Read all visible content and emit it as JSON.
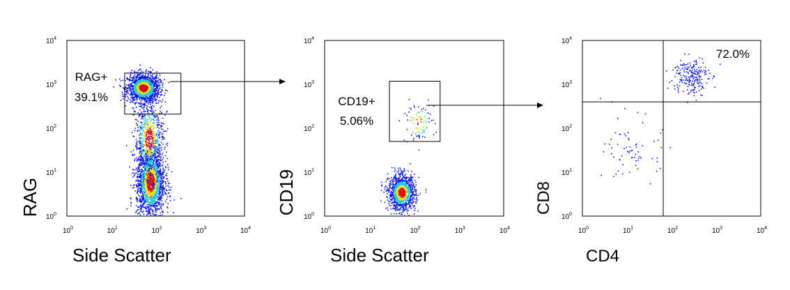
{
  "chart_data": [
    {
      "type": "scatter",
      "subtype": "flow-cytometry-density",
      "xlabel": "Side Scatter",
      "ylabel": "RAG",
      "x_scale": "log",
      "y_scale": "log",
      "xlim": [
        1,
        10000
      ],
      "ylim": [
        1,
        10000
      ],
      "x_ticks": [
        {
          "base": "10",
          "exp": "0"
        },
        {
          "base": "10",
          "exp": "1"
        },
        {
          "base": "10",
          "exp": "2"
        },
        {
          "base": "10",
          "exp": "3"
        },
        {
          "base": "10",
          "exp": "4"
        }
      ],
      "y_ticks": [
        {
          "base": "10",
          "exp": "0"
        },
        {
          "base": "10",
          "exp": "1"
        },
        {
          "base": "10",
          "exp": "2"
        },
        {
          "base": "10",
          "exp": "3"
        },
        {
          "base": "10",
          "exp": "4"
        }
      ],
      "populations": [
        {
          "x_center": 52,
          "y_center": 850,
          "x_spread": 0.18,
          "y_spread": 0.16,
          "points": 1500
        },
        {
          "x_center": 75,
          "y_center": 6,
          "x_spread": 0.16,
          "y_spread": 0.4,
          "points": 1900
        },
        {
          "x_center": 70,
          "y_center": 60,
          "x_spread": 0.16,
          "y_spread": 0.45,
          "points": 700
        }
      ],
      "gates": [
        {
          "type": "rectangle",
          "x_range": [
            20,
            370
          ],
          "y_range": [
            210,
            1800
          ],
          "label_line1": "RAG+",
          "label_line2": "39.1%"
        }
      ]
    },
    {
      "type": "scatter",
      "subtype": "flow-cytometry-density",
      "xlabel": "Side Scatter",
      "ylabel": "CD19",
      "x_scale": "log",
      "y_scale": "log",
      "xlim": [
        1,
        10000
      ],
      "ylim": [
        1,
        10000
      ],
      "x_ticks": [
        {
          "base": "10",
          "exp": "0"
        },
        {
          "base": "10",
          "exp": "1"
        },
        {
          "base": "10",
          "exp": "2"
        },
        {
          "base": "10",
          "exp": "3"
        },
        {
          "base": "10",
          "exp": "4"
        }
      ],
      "y_ticks": [
        {
          "base": "10",
          "exp": "0"
        },
        {
          "base": "10",
          "exp": "1"
        },
        {
          "base": "10",
          "exp": "2"
        },
        {
          "base": "10",
          "exp": "3"
        },
        {
          "base": "10",
          "exp": "4"
        }
      ],
      "populations": [
        {
          "x_center": 52,
          "y_center": 3.5,
          "x_spread": 0.15,
          "y_spread": 0.2,
          "points": 1200
        },
        {
          "x_center": 120,
          "y_center": 140,
          "x_spread": 0.18,
          "y_spread": 0.22,
          "points": 90
        }
      ],
      "gates": [
        {
          "type": "rectangle",
          "x_range": [
            28,
            380
          ],
          "y_range": [
            50,
            1180
          ],
          "label_line1": "CD19+",
          "label_line2": "5.06%"
        }
      ]
    },
    {
      "type": "scatter",
      "subtype": "flow-cytometry-dot",
      "xlabel": "CD4",
      "ylabel": "CD8",
      "x_scale": "log",
      "y_scale": "log",
      "xlim": [
        1,
        10000
      ],
      "ylim": [
        1,
        10000
      ],
      "x_ticks": [
        {
          "base": "10",
          "exp": "0"
        },
        {
          "base": "10",
          "exp": "1"
        },
        {
          "base": "10",
          "exp": "2"
        },
        {
          "base": "10",
          "exp": "3"
        },
        {
          "base": "10",
          "exp": "4"
        }
      ],
      "y_ticks": [
        {
          "base": "10",
          "exp": "0"
        },
        {
          "base": "10",
          "exp": "1"
        },
        {
          "base": "10",
          "exp": "2"
        },
        {
          "base": "10",
          "exp": "3"
        },
        {
          "base": "10",
          "exp": "4"
        }
      ],
      "populations": [
        {
          "x_center": 260,
          "y_center": 1600,
          "x_spread": 0.2,
          "y_spread": 0.22,
          "points": 220
        },
        {
          "x_center": 14,
          "y_center": 30,
          "x_spread": 0.32,
          "y_spread": 0.38,
          "points": 70
        }
      ],
      "quadrant_lines": {
        "x": 65,
        "y": 400
      },
      "quadrant_labels": [
        {
          "quadrant": "upper-right",
          "text": "72.0%"
        }
      ]
    }
  ],
  "colors": {
    "frame": "#000000",
    "density_low": "#0a17d6",
    "density_mid": "#22c8dc",
    "density_high": "#f2dd1a",
    "density_peak": "#d51411"
  }
}
